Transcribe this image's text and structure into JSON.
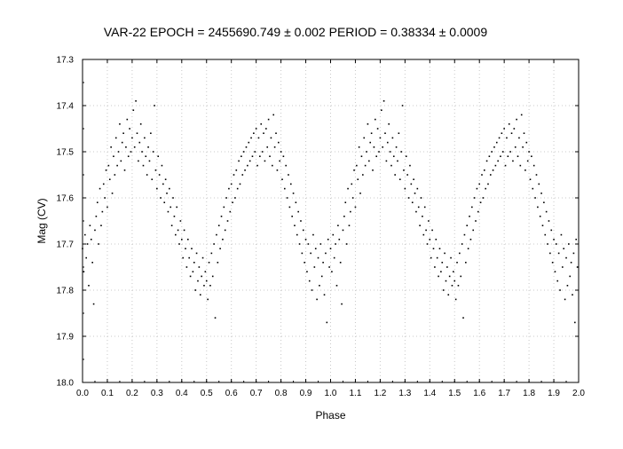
{
  "chart_data": {
    "type": "scatter",
    "title": "VAR-22     EPOCH = 2455690.749 ± 0.002     PERIOD = 0.38334 ± 0.0009",
    "xlabel": "Phase",
    "ylabel": "Mag (CV)",
    "xlim": [
      0.0,
      2.0
    ],
    "ylim": [
      17.3,
      18.0
    ],
    "y_inverted": true,
    "grid": true,
    "grid_style": "dotted",
    "point_color": "#000000",
    "x_ticks": [
      "0.0",
      "0.1",
      "0.2",
      "0.3",
      "0.4",
      "0.5",
      "0.6",
      "0.7",
      "0.8",
      "0.9",
      "1.0",
      "1.1",
      "1.2",
      "1.3",
      "1.4",
      "1.5",
      "1.6",
      "1.7",
      "1.8",
      "1.9",
      "2.0"
    ],
    "y_ticks": [
      "17.3",
      "17.4",
      "17.5",
      "17.6",
      "17.7",
      "17.8",
      "17.9",
      "18.0"
    ],
    "points_period": 1.0,
    "points": [
      [
        0.0,
        17.71
      ],
      [
        0.005,
        17.76
      ],
      [
        0.01,
        17.68
      ],
      [
        0.015,
        17.73
      ],
      [
        0.02,
        17.7
      ],
      [
        0.025,
        17.79
      ],
      [
        0.03,
        17.66
      ],
      [
        0.035,
        17.69
      ],
      [
        0.04,
        17.74
      ],
      [
        0.045,
        17.83
      ],
      [
        0.05,
        17.67
      ],
      [
        0.055,
        17.64
      ],
      [
        0.06,
        17.61
      ],
      [
        0.065,
        17.7
      ],
      [
        0.07,
        17.58
      ],
      [
        0.075,
        17.66
      ],
      [
        0.08,
        17.63
      ],
      [
        0.085,
        17.57
      ],
      [
        0.09,
        17.6
      ],
      [
        0.095,
        17.54
      ],
      [
        0.1,
        17.62
      ],
      [
        0.105,
        17.53
      ],
      [
        0.11,
        17.56
      ],
      [
        0.115,
        17.49
      ],
      [
        0.12,
        17.59
      ],
      [
        0.125,
        17.51
      ],
      [
        0.13,
        17.55
      ],
      [
        0.135,
        17.47
      ],
      [
        0.14,
        17.53
      ],
      [
        0.145,
        17.5
      ],
      [
        0.15,
        17.44
      ],
      [
        0.155,
        17.52
      ],
      [
        0.16,
        17.48
      ],
      [
        0.165,
        17.46
      ],
      [
        0.17,
        17.54
      ],
      [
        0.175,
        17.49
      ],
      [
        0.18,
        17.43
      ],
      [
        0.185,
        17.51
      ],
      [
        0.19,
        17.45
      ],
      [
        0.195,
        17.5
      ],
      [
        0.2,
        17.47
      ],
      [
        0.205,
        17.41
      ],
      [
        0.21,
        17.49
      ],
      [
        0.215,
        17.39
      ],
      [
        0.22,
        17.46
      ],
      [
        0.225,
        17.52
      ],
      [
        0.23,
        17.48
      ],
      [
        0.235,
        17.44
      ],
      [
        0.24,
        17.5
      ],
      [
        0.245,
        17.53
      ],
      [
        0.25,
        17.47
      ],
      [
        0.255,
        17.51
      ],
      [
        0.26,
        17.55
      ],
      [
        0.265,
        17.49
      ],
      [
        0.27,
        17.52
      ],
      [
        0.275,
        17.46
      ],
      [
        0.28,
        17.56
      ],
      [
        0.285,
        17.5
      ],
      [
        0.29,
        17.4
      ],
      [
        0.295,
        17.54
      ],
      [
        0.3,
        17.58
      ],
      [
        0.305,
        17.51
      ],
      [
        0.31,
        17.55
      ],
      [
        0.315,
        17.6
      ],
      [
        0.32,
        17.53
      ],
      [
        0.325,
        17.57
      ],
      [
        0.33,
        17.61
      ],
      [
        0.335,
        17.56
      ],
      [
        0.34,
        17.59
      ],
      [
        0.345,
        17.63
      ],
      [
        0.35,
        17.58
      ],
      [
        0.355,
        17.62
      ],
      [
        0.36,
        17.66
      ],
      [
        0.365,
        17.6
      ],
      [
        0.37,
        17.64
      ],
      [
        0.375,
        17.68
      ],
      [
        0.38,
        17.62
      ],
      [
        0.385,
        17.67
      ],
      [
        0.39,
        17.7
      ],
      [
        0.395,
        17.65
      ],
      [
        0.4,
        17.69
      ],
      [
        0.405,
        17.73
      ],
      [
        0.41,
        17.67
      ],
      [
        0.415,
        17.71
      ],
      [
        0.42,
        17.75
      ],
      [
        0.425,
        17.69
      ],
      [
        0.43,
        17.73
      ],
      [
        0.435,
        17.77
      ],
      [
        0.44,
        17.71
      ],
      [
        0.445,
        17.76
      ],
      [
        0.45,
        17.74
      ],
      [
        0.455,
        17.8
      ],
      [
        0.46,
        17.72
      ],
      [
        0.465,
        17.78
      ],
      [
        0.47,
        17.75
      ],
      [
        0.475,
        17.81
      ],
      [
        0.48,
        17.77
      ],
      [
        0.485,
        17.73
      ],
      [
        0.49,
        17.79
      ],
      [
        0.495,
        17.76
      ],
      [
        0.5,
        17.78
      ],
      [
        0.505,
        17.82
      ],
      [
        0.51,
        17.74
      ],
      [
        0.515,
        17.79
      ],
      [
        0.52,
        17.72
      ],
      [
        0.525,
        17.77
      ],
      [
        0.53,
        17.7
      ],
      [
        0.535,
        17.86
      ],
      [
        0.54,
        17.68
      ],
      [
        0.545,
        17.74
      ],
      [
        0.55,
        17.66
      ],
      [
        0.555,
        17.71
      ],
      [
        0.56,
        17.64
      ],
      [
        0.565,
        17.69
      ],
      [
        0.57,
        17.62
      ],
      [
        0.575,
        17.67
      ],
      [
        0.58,
        17.6
      ],
      [
        0.585,
        17.65
      ],
      [
        0.59,
        17.58
      ],
      [
        0.595,
        17.63
      ],
      [
        0.6,
        17.57
      ],
      [
        0.605,
        17.61
      ],
      [
        0.61,
        17.55
      ],
      [
        0.615,
        17.6
      ],
      [
        0.62,
        17.54
      ],
      [
        0.625,
        17.58
      ],
      [
        0.63,
        17.52
      ],
      [
        0.635,
        17.57
      ],
      [
        0.64,
        17.51
      ],
      [
        0.645,
        17.55
      ],
      [
        0.65,
        17.5
      ],
      [
        0.655,
        17.54
      ],
      [
        0.66,
        17.49
      ],
      [
        0.665,
        17.53
      ],
      [
        0.67,
        17.48
      ],
      [
        0.675,
        17.52
      ],
      [
        0.68,
        17.47
      ],
      [
        0.685,
        17.51
      ],
      [
        0.69,
        17.46
      ],
      [
        0.695,
        17.5
      ],
      [
        0.7,
        17.45
      ],
      [
        0.705,
        17.53
      ],
      [
        0.71,
        17.47
      ],
      [
        0.715,
        17.51
      ],
      [
        0.72,
        17.44
      ],
      [
        0.725,
        17.5
      ],
      [
        0.73,
        17.46
      ],
      [
        0.735,
        17.52
      ],
      [
        0.74,
        17.45
      ],
      [
        0.745,
        17.49
      ],
      [
        0.75,
        17.43
      ],
      [
        0.755,
        17.51
      ],
      [
        0.76,
        17.47
      ],
      [
        0.765,
        17.53
      ],
      [
        0.77,
        17.42
      ],
      [
        0.775,
        17.49
      ],
      [
        0.78,
        17.46
      ],
      [
        0.785,
        17.54
      ],
      [
        0.79,
        17.48
      ],
      [
        0.795,
        17.52
      ],
      [
        0.8,
        17.5
      ],
      [
        0.805,
        17.56
      ],
      [
        0.81,
        17.51
      ],
      [
        0.815,
        17.58
      ],
      [
        0.82,
        17.53
      ],
      [
        0.825,
        17.6
      ],
      [
        0.83,
        17.55
      ],
      [
        0.835,
        17.62
      ],
      [
        0.84,
        17.57
      ],
      [
        0.845,
        17.64
      ],
      [
        0.85,
        17.59
      ],
      [
        0.855,
        17.66
      ],
      [
        0.86,
        17.61
      ],
      [
        0.865,
        17.68
      ],
      [
        0.87,
        17.63
      ],
      [
        0.875,
        17.7
      ],
      [
        0.88,
        17.65
      ],
      [
        0.885,
        17.72
      ],
      [
        0.89,
        17.67
      ],
      [
        0.895,
        17.74
      ],
      [
        0.9,
        17.69
      ],
      [
        0.905,
        17.76
      ],
      [
        0.91,
        17.7
      ],
      [
        0.915,
        17.78
      ],
      [
        0.92,
        17.72
      ],
      [
        0.925,
        17.8
      ],
      [
        0.93,
        17.68
      ],
      [
        0.935,
        17.75
      ],
      [
        0.94,
        17.71
      ],
      [
        0.945,
        17.82
      ],
      [
        0.95,
        17.73
      ],
      [
        0.955,
        17.79
      ],
      [
        0.96,
        17.7
      ],
      [
        0.965,
        17.77
      ],
      [
        0.97,
        17.74
      ],
      [
        0.975,
        17.81
      ],
      [
        0.98,
        17.72
      ],
      [
        0.985,
        17.87
      ],
      [
        0.99,
        17.69
      ],
      [
        0.995,
        17.75
      ]
    ]
  }
}
